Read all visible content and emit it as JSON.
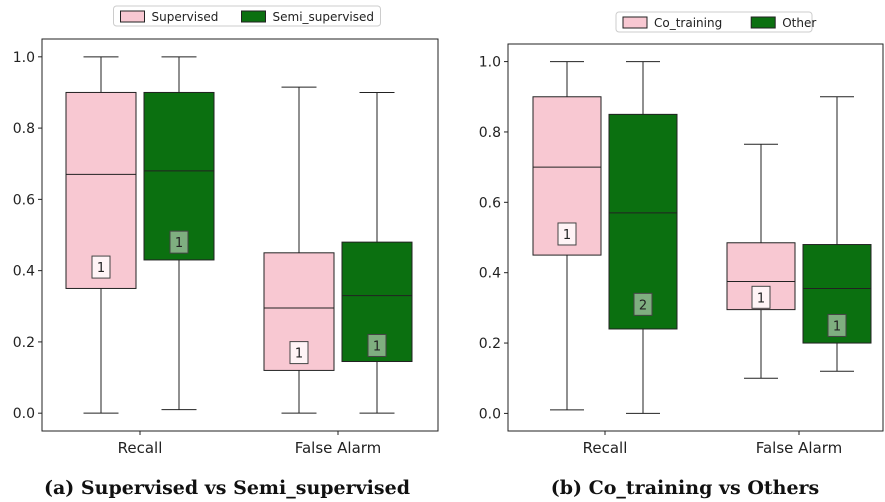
{
  "chart_data": [
    {
      "type": "box",
      "caption": "(a) Supervised vs Semi_supervised",
      "categories": [
        "Recall",
        "False Alarm"
      ],
      "ylim": [
        -0.05,
        1.05
      ],
      "yticks": [
        "0.0",
        "0.2",
        "0.4",
        "0.6",
        "0.8",
        "1.0"
      ],
      "series": [
        {
          "name": "Supervised",
          "color": "#f8c8d2",
          "boxes": [
            {
              "min": 0.0,
              "q1": 0.35,
              "median": 0.67,
              "q3": 0.9,
              "max": 1.0,
              "rank": "1",
              "rank_y": 0.41
            },
            {
              "min": 0.0,
              "q1": 0.12,
              "median": 0.295,
              "q3": 0.45,
              "max": 0.915,
              "rank": "1",
              "rank_y": 0.17
            }
          ]
        },
        {
          "name": "Semi_supervised",
          "color": "#0b7010",
          "boxes": [
            {
              "min": 0.01,
              "q1": 0.43,
              "median": 0.68,
              "q3": 0.9,
              "max": 1.0,
              "rank": "1",
              "rank_y": 0.48
            },
            {
              "min": 0.0,
              "q1": 0.145,
              "median": 0.33,
              "q3": 0.48,
              "max": 0.9,
              "rank": "1",
              "rank_y": 0.19
            }
          ]
        }
      ]
    },
    {
      "type": "box",
      "caption": "(b) Co_training vs Others",
      "categories": [
        "Recall",
        "False Alarm"
      ],
      "ylim": [
        -0.05,
        1.05
      ],
      "yticks": [
        "0.0",
        "0.2",
        "0.4",
        "0.6",
        "0.8",
        "1.0"
      ],
      "series": [
        {
          "name": "Co_training",
          "color": "#f8c8d2",
          "boxes": [
            {
              "min": 0.01,
              "q1": 0.45,
              "median": 0.7,
              "q3": 0.9,
              "max": 1.0,
              "rank": "1",
              "rank_y": 0.51
            },
            {
              "min": 0.1,
              "q1": 0.295,
              "median": 0.375,
              "q3": 0.485,
              "max": 0.765,
              "rank": "1",
              "rank_y": 0.33
            }
          ]
        },
        {
          "name": "Other",
          "color": "#0b7010",
          "boxes": [
            {
              "min": 0.0,
              "q1": 0.24,
              "median": 0.57,
              "q3": 0.85,
              "max": 1.0,
              "rank": "2",
              "rank_y": 0.31
            },
            {
              "min": 0.12,
              "q1": 0.2,
              "median": 0.355,
              "q3": 0.48,
              "max": 0.9,
              "rank": "1",
              "rank_y": 0.25
            }
          ]
        }
      ]
    }
  ]
}
